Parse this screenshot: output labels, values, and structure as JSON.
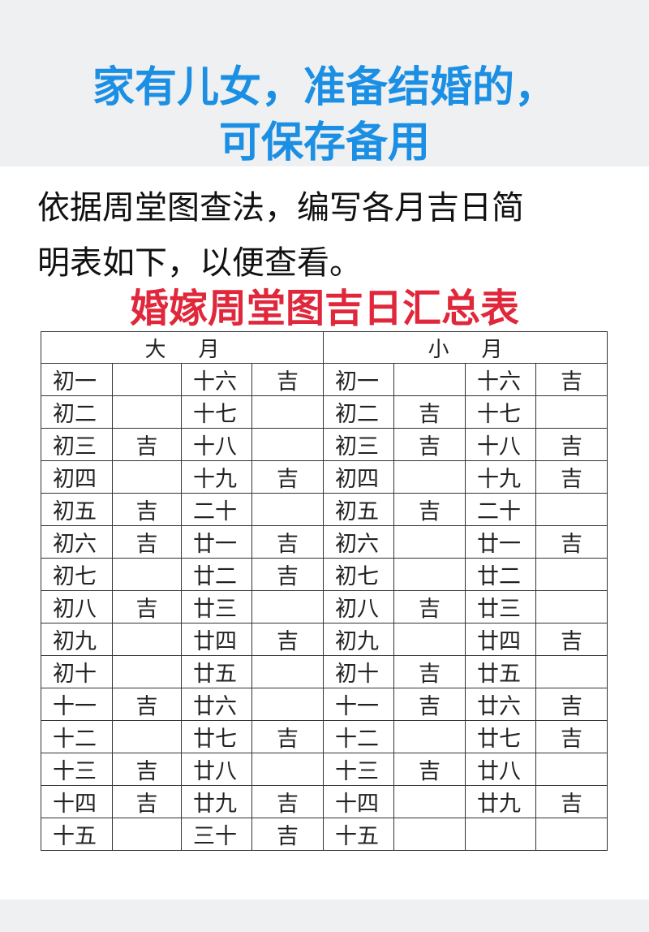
{
  "header": {
    "title_lines": [
      "家有儿女，准备结婚的，",
      "可保存备用"
    ]
  },
  "intro": {
    "lines": [
      "依据周堂图查法，编写各月吉日简",
      "明表如下，以便查看。"
    ]
  },
  "table": {
    "title": "婚嫁周堂图吉日汇总表",
    "groups": [
      "大月",
      "小月"
    ],
    "rows": [
      [
        "初一",
        null,
        "十六",
        "吉",
        "初一",
        null,
        "十六",
        "吉"
      ],
      [
        "初二",
        null,
        "十七",
        null,
        "初二",
        "吉",
        "十七",
        null
      ],
      [
        "初三",
        "吉",
        "十八",
        null,
        "初三",
        "吉",
        "十八",
        "吉"
      ],
      [
        "初四",
        null,
        "十九",
        "吉",
        "初四",
        null,
        "十九",
        "吉"
      ],
      [
        "初五",
        "吉",
        "二十",
        null,
        "初五",
        "吉",
        "二十",
        null
      ],
      [
        "初六",
        "吉",
        "廿一",
        "吉",
        "初六",
        null,
        "廿一",
        "吉"
      ],
      [
        "初七",
        null,
        "廿二",
        "吉",
        "初七",
        null,
        "廿二",
        null
      ],
      [
        "初八",
        "吉",
        "廿三",
        null,
        "初八",
        "吉",
        "廿三",
        null
      ],
      [
        "初九",
        null,
        "廿四",
        "吉",
        "初九",
        null,
        "廿四",
        "吉"
      ],
      [
        "初十",
        null,
        "廿五",
        null,
        "初十",
        "吉",
        "廿五",
        null
      ],
      [
        "十一",
        "吉",
        "廿六",
        null,
        "十一",
        "吉",
        "廿六",
        "吉"
      ],
      [
        "十二",
        null,
        "廿七",
        "吉",
        "十二",
        null,
        "廿七",
        "吉"
      ],
      [
        "十三",
        "吉",
        "廿八",
        null,
        "十三",
        "吉",
        "廿八",
        null
      ],
      [
        "十四",
        "吉",
        "廿九",
        "吉",
        "十四",
        null,
        "廿九",
        "吉"
      ],
      [
        "十五",
        null,
        "三十",
        "吉",
        "十五",
        null,
        null,
        null
      ]
    ]
  }
}
